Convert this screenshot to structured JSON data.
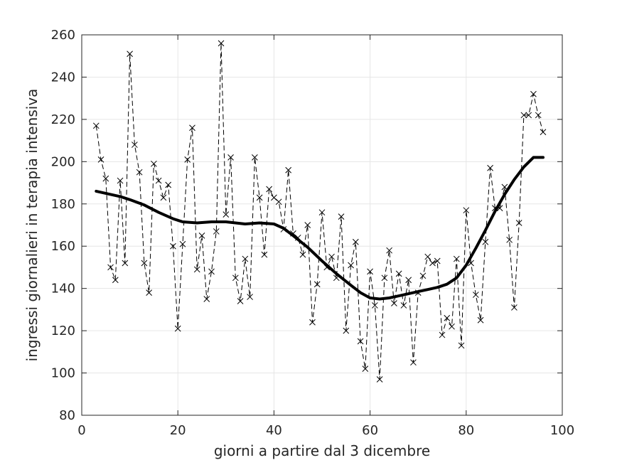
{
  "chart_data": {
    "type": "line",
    "title": "",
    "xlabel": "giorni a partire dal 3 dicembre",
    "ylabel": "ingressi giornalieri in terapia intensiva",
    "xlim": [
      0,
      100
    ],
    "ylim": [
      80,
      260
    ],
    "xticks": [
      0,
      20,
      40,
      60,
      80,
      100
    ],
    "yticks": [
      80,
      100,
      120,
      140,
      160,
      180,
      200,
      220,
      240,
      260
    ],
    "grid": true,
    "legend": "none",
    "series": [
      {
        "style": "dashed-with-x-markers",
        "color": "#000000",
        "x": [
          3,
          4,
          5,
          6,
          7,
          8,
          9,
          10,
          11,
          12,
          13,
          14,
          15,
          16,
          17,
          18,
          19,
          20,
          21,
          22,
          23,
          24,
          25,
          26,
          27,
          28,
          29,
          30,
          31,
          32,
          33,
          34,
          35,
          36,
          37,
          38,
          39,
          40,
          41,
          42,
          43,
          44,
          45,
          46,
          47,
          48,
          49,
          50,
          51,
          52,
          53,
          54,
          55,
          56,
          57,
          58,
          59,
          60,
          61,
          62,
          63,
          64,
          65,
          66,
          67,
          68,
          69,
          70,
          71,
          72,
          73,
          74,
          75,
          76,
          77,
          78,
          79,
          80,
          81,
          82,
          83,
          84,
          85,
          86,
          87,
          88,
          89,
          90,
          91,
          92,
          93,
          94,
          95,
          96
        ],
        "y": [
          217,
          201,
          192,
          150,
          144,
          191,
          152,
          251,
          208,
          195,
          152,
          138,
          199,
          191,
          183,
          189,
          160,
          121,
          161,
          201,
          216,
          149,
          165,
          135,
          148,
          167,
          256,
          175,
          202,
          145,
          134,
          154,
          136,
          202,
          183,
          156,
          187,
          183,
          181,
          168,
          196,
          166,
          164,
          156,
          170,
          124,
          142,
          176,
          150,
          155,
          145,
          174,
          120,
          151,
          162,
          115,
          102,
          148,
          132,
          97,
          145,
          158,
          133,
          147,
          132,
          144,
          105,
          138,
          146,
          155,
          152,
          153,
          118,
          126,
          122,
          154,
          113,
          177,
          152,
          137,
          125,
          162,
          197,
          178,
          178,
          188,
          163,
          131,
          171,
          222,
          222,
          232,
          222,
          214
        ]
      },
      {
        "style": "thick-solid-smoothed",
        "color": "#000000",
        "x": [
          3,
          5,
          8,
          10,
          13,
          16,
          19,
          21,
          24,
          27,
          30,
          34,
          37,
          40,
          42,
          44,
          47,
          50,
          53,
          56,
          58,
          60,
          62,
          64,
          66,
          68,
          70,
          72,
          74,
          76,
          78,
          80,
          82,
          84,
          86,
          88,
          90,
          92,
          94,
          96
        ],
        "y": [
          186,
          185,
          183.5,
          182,
          179.5,
          176,
          173,
          171.5,
          171,
          171.5,
          171.5,
          170.5,
          171,
          170.5,
          168.5,
          165,
          159.5,
          153,
          147,
          141.5,
          138,
          135.5,
          135,
          135.5,
          136.5,
          137.5,
          138.5,
          139.5,
          140.5,
          142,
          145,
          151,
          159,
          167.5,
          176.5,
          184.5,
          191.5,
          197.5,
          202,
          202
        ]
      }
    ]
  }
}
